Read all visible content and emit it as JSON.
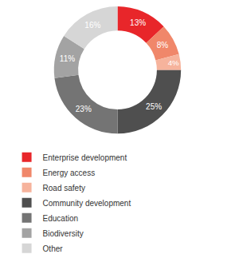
{
  "chart_data": {
    "type": "pie",
    "categories": [
      "Enterprise development",
      "Energy access",
      "Road safety",
      "Community development",
      "Education",
      "Biodiversity",
      "Other"
    ],
    "values": [
      13,
      8,
      4,
      25,
      23,
      11,
      16
    ],
    "value_labels": [
      "13%",
      "8%",
      "4%",
      "25%",
      "23%",
      "11%",
      "16%"
    ],
    "colors": [
      "#e8262a",
      "#f0876a",
      "#f6b39c",
      "#4f4f4f",
      "#747474",
      "#a3a3a3",
      "#d6d6d6"
    ],
    "data_labels": true,
    "legend": "bottom"
  }
}
